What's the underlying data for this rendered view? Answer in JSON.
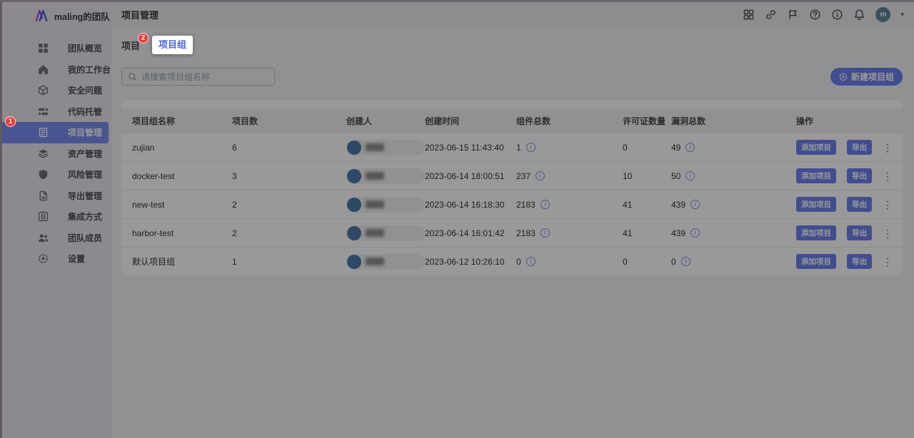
{
  "team": {
    "name": "maling的团队"
  },
  "sidebar": {
    "items": [
      {
        "key": "team-overview",
        "icon": "grid-icon",
        "label": "团队概览"
      },
      {
        "key": "my-workbench",
        "icon": "home-icon",
        "label": "我的工作台"
      },
      {
        "key": "security-issues",
        "icon": "cube-icon",
        "label": "安全问题"
      },
      {
        "key": "code-hosting",
        "icon": "code-repo-icon",
        "label": "代码托管"
      },
      {
        "key": "project-management",
        "icon": "clipboard-icon",
        "label": "项目管理",
        "active": true,
        "badge": "1"
      },
      {
        "key": "asset-management",
        "icon": "layers-icon",
        "label": "资产管理"
      },
      {
        "key": "risk-management",
        "icon": "shield-icon",
        "label": "风险管理"
      },
      {
        "key": "export-management",
        "icon": "file-export-icon",
        "label": "导出管理"
      },
      {
        "key": "integration",
        "icon": "integration-icon",
        "label": "集成方式"
      },
      {
        "key": "team-members",
        "icon": "members-icon",
        "label": "团队成员"
      },
      {
        "key": "settings",
        "icon": "gear-icon",
        "label": "设置"
      }
    ]
  },
  "topbar": {
    "title": "项目管理",
    "icons": [
      {
        "name": "apps-grid-icon"
      },
      {
        "name": "link-icon"
      },
      {
        "name": "flag-icon"
      },
      {
        "name": "help-icon"
      },
      {
        "name": "info-circle-icon"
      },
      {
        "name": "bell-icon"
      }
    ],
    "avatar_initial": "m"
  },
  "tabs": {
    "projects": {
      "label": "项目",
      "badge": "2"
    },
    "project_groups": {
      "label": "项目组"
    }
  },
  "toolbar": {
    "search_placeholder": "请搜索项目组名称",
    "new_group_label": "新建项目组"
  },
  "table": {
    "columns": [
      "项目组名称",
      "项目数",
      "创建人",
      "创建时间",
      "组件总数",
      "许可证数量",
      "漏洞总数",
      "操作"
    ],
    "row_actions": {
      "add_project": "添加项目",
      "export": "导出"
    },
    "rows": [
      {
        "name": "zujian",
        "projects": "6",
        "created": "2023-06-15 11:43:40",
        "components": "1",
        "licenses": "0",
        "vulns": "49"
      },
      {
        "name": "docker-test",
        "projects": "3",
        "created": "2023-06-14 18:00:51",
        "components": "237",
        "licenses": "10",
        "vulns": "50"
      },
      {
        "name": "new-test",
        "projects": "2",
        "created": "2023-06-14 16:18:30",
        "components": "2183",
        "licenses": "41",
        "vulns": "439"
      },
      {
        "name": "harbor-test",
        "projects": "2",
        "created": "2023-06-14 16:01:42",
        "components": "2183",
        "licenses": "41",
        "vulns": "439"
      },
      {
        "name": "默认项目组",
        "projects": "1",
        "created": "2023-06-12 10:26:10",
        "components": "0",
        "licenses": "0",
        "vulns": "0"
      }
    ]
  },
  "colors": {
    "accent": "#6e81f0",
    "badge_red": "#f03b34",
    "active_tab_text": "#5065dd"
  }
}
